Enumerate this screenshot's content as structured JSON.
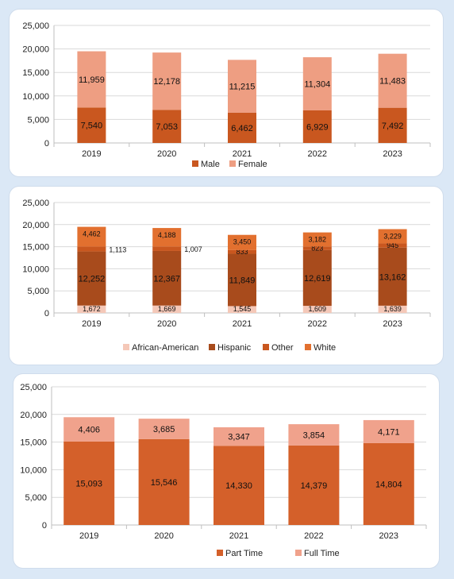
{
  "chart_data": [
    {
      "type": "bar",
      "stacked": true,
      "categories": [
        "2019",
        "2020",
        "2021",
        "2022",
        "2023"
      ],
      "ylim": [
        0,
        25000
      ],
      "yticks": [
        0,
        5000,
        10000,
        15000,
        20000,
        25000
      ],
      "grid": true,
      "legend": "bottom",
      "series": [
        {
          "name": "Male",
          "values": [
            7540,
            7053,
            6462,
            6929,
            7492
          ],
          "color": "#c9571f"
        },
        {
          "name": "Female",
          "values": [
            11959,
            12178,
            11215,
            11304,
            11483
          ],
          "color": "#ee9e82"
        }
      ]
    },
    {
      "type": "bar",
      "stacked": true,
      "categories": [
        "2019",
        "2020",
        "2021",
        "2022",
        "2023"
      ],
      "ylim": [
        0,
        25000
      ],
      "yticks": [
        0,
        5000,
        10000,
        15000,
        20000,
        25000
      ],
      "grid": true,
      "legend": "bottom",
      "series": [
        {
          "name": "African-American",
          "values": [
            1672,
            1669,
            1545,
            1609,
            1639
          ],
          "color": "#f5c8b8"
        },
        {
          "name": "Hispanic",
          "values": [
            12252,
            12367,
            11849,
            12619,
            13162
          ],
          "color": "#a84b1c"
        },
        {
          "name": "Other",
          "values": [
            1113,
            1007,
            833,
            823,
            945
          ],
          "color": "#c9571f"
        },
        {
          "name": "White",
          "values": [
            4462,
            4188,
            3450,
            3182,
            3229
          ],
          "color": "#e2702f"
        }
      ]
    },
    {
      "type": "bar",
      "stacked": true,
      "categories": [
        "2019",
        "2020",
        "2021",
        "2022",
        "2023"
      ],
      "ylim": [
        0,
        25000
      ],
      "yticks": [
        0,
        5000,
        10000,
        15000,
        20000,
        25000
      ],
      "grid": true,
      "legend": "bottom",
      "series": [
        {
          "name": "Part Time",
          "values": [
            15093,
            15546,
            14330,
            14379,
            14804
          ],
          "color": "#d4602a"
        },
        {
          "name": "Full Time",
          "values": [
            4406,
            3685,
            3347,
            3854,
            4171
          ],
          "color": "#f0a28c"
        }
      ]
    }
  ]
}
